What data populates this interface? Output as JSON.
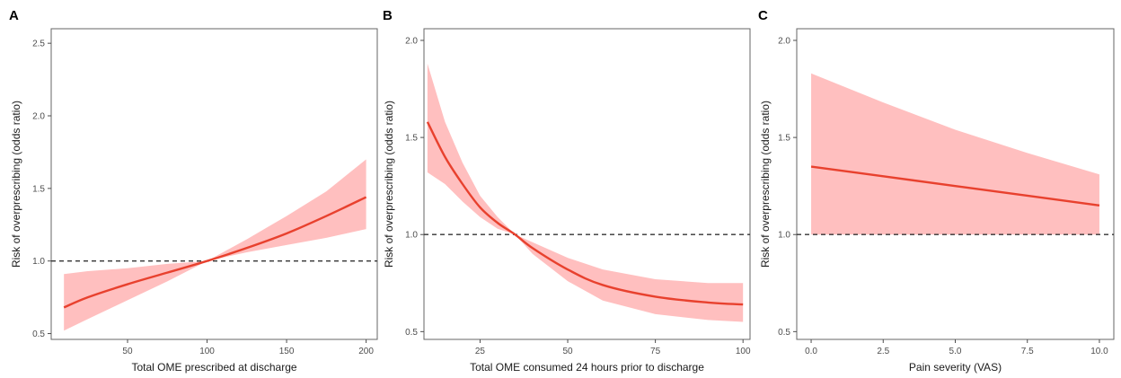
{
  "colors": {
    "curve": "#e8412e",
    "band": "#ffbfbf",
    "reference": "#333333"
  },
  "chart_data": [
    {
      "type": "line",
      "panel_label": "A",
      "xlabel": "Total OME prescribed at discharge",
      "ylabel": "Risk of overprescribing (odds ratio)",
      "xlim": [
        2,
        207
      ],
      "ylim": [
        0.46,
        2.6
      ],
      "xticks": [
        50,
        100,
        150,
        200
      ],
      "xtick_labels": [
        "50",
        "100",
        "150",
        "200"
      ],
      "yticks": [
        0.5,
        1.0,
        1.5,
        2.0,
        2.5
      ],
      "ytick_labels": [
        "0.5",
        "1.0",
        "1.5",
        "2.0",
        "2.5"
      ],
      "reference_line": 1.0,
      "grid": false,
      "series": [
        {
          "x": [
            10,
            25,
            50,
            75,
            100,
            125,
            150,
            175,
            200
          ],
          "y": [
            0.68,
            0.75,
            0.84,
            0.92,
            1.0,
            1.09,
            1.19,
            1.31,
            1.44
          ],
          "ci_lower": [
            0.52,
            0.6,
            0.73,
            0.86,
            1.0,
            1.06,
            1.11,
            1.16,
            1.22
          ],
          "ci_upper": [
            0.91,
            0.93,
            0.95,
            0.98,
            1.0,
            1.15,
            1.31,
            1.48,
            1.7
          ]
        }
      ]
    },
    {
      "type": "line",
      "panel_label": "B",
      "xlabel": "Total OME consumed 24 hours prior to discharge",
      "ylabel": "Risk of overprescribing (odds ratio)",
      "xlim": [
        9,
        102
      ],
      "ylim": [
        0.46,
        2.06
      ],
      "xticks": [
        25,
        50,
        75,
        100
      ],
      "xtick_labels": [
        "25",
        "50",
        "75",
        "100"
      ],
      "yticks": [
        0.5,
        1.0,
        1.5,
        2.0
      ],
      "ytick_labels": [
        "0.5",
        "1.0",
        "1.5",
        "2.0"
      ],
      "reference_line": 1.0,
      "grid": false,
      "series": [
        {
          "x": [
            10,
            15,
            20,
            25,
            30,
            35,
            40,
            50,
            60,
            75,
            90,
            100
          ],
          "y": [
            1.58,
            1.4,
            1.26,
            1.14,
            1.06,
            1.0,
            0.93,
            0.82,
            0.74,
            0.68,
            0.65,
            0.64
          ],
          "ci_lower": [
            1.32,
            1.26,
            1.17,
            1.09,
            1.03,
            1.0,
            0.9,
            0.76,
            0.66,
            0.59,
            0.56,
            0.55
          ],
          "ci_upper": [
            1.88,
            1.58,
            1.37,
            1.2,
            1.09,
            1.0,
            0.96,
            0.88,
            0.82,
            0.77,
            0.75,
            0.75
          ]
        }
      ]
    },
    {
      "type": "line",
      "panel_label": "C",
      "xlabel": "Pain severity (VAS)",
      "ylabel": "Risk of overprescribing (odds ratio)",
      "xlim": [
        -0.5,
        10.5
      ],
      "ylim": [
        0.46,
        2.06
      ],
      "xticks": [
        0,
        2.5,
        5,
        7.5,
        10
      ],
      "xtick_labels": [
        "0.0",
        "2.5",
        "5.0",
        "7.5",
        "10.0"
      ],
      "yticks": [
        0.5,
        1.0,
        1.5,
        2.0
      ],
      "ytick_labels": [
        "0.5",
        "1.0",
        "1.5",
        "2.0"
      ],
      "reference_line": 1.0,
      "grid": false,
      "series": [
        {
          "x": [
            0,
            2.5,
            5,
            7.5,
            10
          ],
          "y": [
            1.35,
            1.3,
            1.25,
            1.2,
            1.15
          ],
          "ci_lower": [
            1.0,
            1.0,
            1.0,
            1.0,
            1.0
          ],
          "ci_upper": [
            1.83,
            1.68,
            1.54,
            1.42,
            1.31
          ]
        }
      ]
    }
  ]
}
